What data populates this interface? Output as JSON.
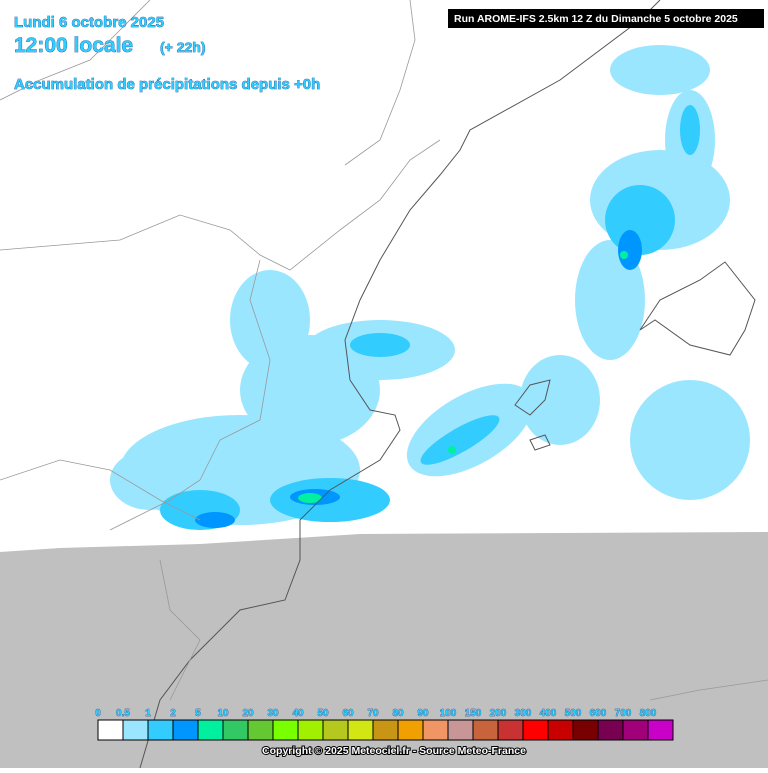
{
  "header": {
    "date": "Lundi 6 octobre 2025",
    "time": "12:00 locale",
    "offset": "(+ 22h)",
    "parameter": "Accumulation de précipitations depuis +0h",
    "run": "Run AROME-IFS 2.5km 12 Z du Dimanche 5 octobre 2025"
  },
  "legend": {
    "labels": [
      0,
      0.5,
      1,
      2,
      5,
      10,
      20,
      30,
      40,
      50,
      60,
      70,
      80,
      90,
      100,
      150,
      200,
      300,
      400,
      500,
      600,
      700,
      800
    ],
    "colors": [
      "#ffffff",
      "#9be6ff",
      "#33ccff",
      "#0096ff",
      "#00f0a0",
      "#32c864",
      "#64c832",
      "#78ff00",
      "#a0f000",
      "#b4c81e",
      "#d2e614",
      "#c89614",
      "#f0a000",
      "#f09664",
      "#c89696",
      "#c8643c",
      "#c83232",
      "#ff0000",
      "#c80000",
      "#780000",
      "#780050",
      "#a00078",
      "#c800c8"
    ]
  },
  "footer": {
    "copyright": "Copyright © 2025 Meteociel.fr - Source Meteo-France"
  }
}
